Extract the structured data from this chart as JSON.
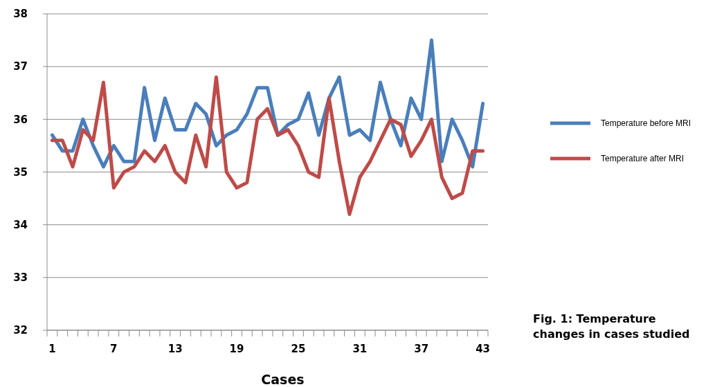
{
  "chart_data": {
    "type": "line",
    "xlabel": "Cases",
    "categories": [
      "1",
      null,
      null,
      null,
      null,
      null,
      "7",
      null,
      null,
      null,
      null,
      null,
      "13",
      null,
      null,
      null,
      null,
      null,
      "19",
      null,
      null,
      null,
      null,
      null,
      "25",
      null,
      null,
      null,
      null,
      null,
      "31",
      null,
      null,
      null,
      null,
      null,
      "37",
      null,
      null,
      null,
      null,
      null,
      "43"
    ],
    "series": [
      {
        "name": "Temperature before MRI",
        "color": "#4a7ebb",
        "values": [
          35.7,
          35.4,
          35.4,
          36.0,
          35.5,
          35.1,
          35.5,
          35.2,
          35.2,
          36.6,
          35.6,
          36.4,
          35.8,
          35.8,
          36.3,
          36.1,
          35.5,
          35.7,
          35.8,
          36.1,
          36.6,
          36.6,
          35.7,
          35.9,
          36.0,
          36.5,
          35.7,
          36.4,
          36.8,
          35.7,
          35.8,
          35.6,
          36.7,
          36.0,
          35.5,
          36.4,
          36.0,
          37.5,
          35.2,
          36.0,
          35.6,
          35.1,
          36.3
        ]
      },
      {
        "name": "Temperature after MRI",
        "color": "#be4b48",
        "values": [
          35.6,
          35.6,
          35.1,
          35.8,
          35.6,
          36.7,
          34.7,
          35.0,
          35.1,
          35.4,
          35.2,
          35.5,
          35.0,
          34.8,
          35.7,
          35.1,
          36.8,
          35.0,
          34.7,
          34.8,
          36.0,
          36.2,
          35.7,
          35.8,
          35.5,
          35.0,
          34.9,
          36.4,
          35.2,
          34.2,
          34.9,
          35.2,
          35.6,
          36.0,
          35.9,
          35.3,
          35.6,
          36.0,
          34.9,
          34.5,
          34.6,
          35.4,
          35.4
        ]
      }
    ],
    "ylim": [
      32,
      38
    ],
    "yticks": [
      32,
      33,
      34,
      35,
      36,
      37,
      38
    ],
    "grid": "y",
    "legend": "right",
    "marker": "none",
    "line_style": "solid",
    "annotations": [
      "Fig. 1: Temperature changes in cases studied"
    ]
  }
}
